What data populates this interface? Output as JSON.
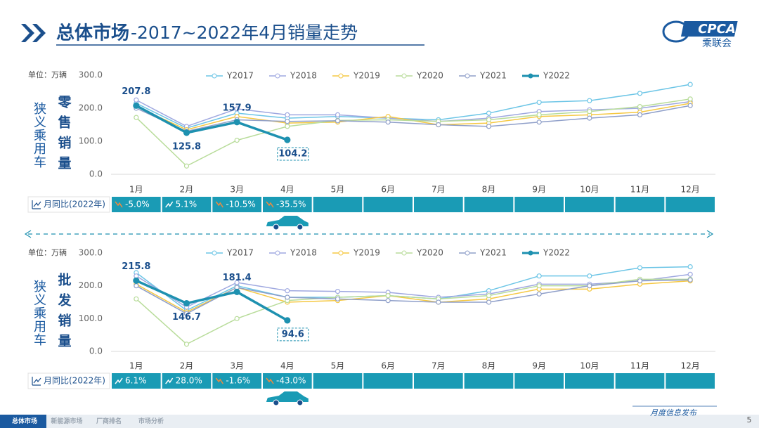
{
  "header": {
    "title_main": "总体市场",
    "title_rest": "-2017~2022年4月销量走势",
    "logo": "CPCA",
    "logo_sub": "乘联会"
  },
  "chart_data": [
    {
      "type": "line",
      "unit": "单位：万辆",
      "group_label": "狭义乘用车",
      "title": "零售销量",
      "categories": [
        "1月",
        "2月",
        "3月",
        "4月",
        "5月",
        "6月",
        "7月",
        "8月",
        "9月",
        "10月",
        "11月",
        "12月"
      ],
      "ylim": [
        0,
        300
      ],
      "yticks": [
        {
          "value": 0,
          "label": "0.0"
        },
        {
          "value": 100,
          "label": "100.0"
        },
        {
          "value": 200,
          "label": "200.0"
        },
        {
          "value": 300,
          "label": "300.0"
        }
      ],
      "series": [
        {
          "name": "Y2017",
          "color": "#6cc5e6",
          "values": [
            215,
            140,
            185,
            170,
            175,
            170,
            165,
            185,
            218,
            223,
            245,
            272
          ]
        },
        {
          "name": "Y2018",
          "color": "#9fa8e0",
          "values": [
            225,
            145,
            198,
            180,
            180,
            170,
            160,
            170,
            190,
            195,
            200,
            220
          ]
        },
        {
          "name": "Y2019",
          "color": "#f5c842",
          "values": [
            205,
            135,
            175,
            155,
            158,
            175,
            150,
            155,
            175,
            180,
            188,
            215
          ]
        },
        {
          "name": "Y2020",
          "color": "#b8dc9a",
          "values": [
            172,
            25,
            103,
            145,
            163,
            165,
            160,
            165,
            180,
            190,
            205,
            228
          ]
        },
        {
          "name": "Y2021",
          "color": "#8f9fc9",
          "values": [
            200,
            130,
            165,
            160,
            162,
            158,
            150,
            145,
            158,
            170,
            180,
            208
          ]
        },
        {
          "name": "Y2022",
          "color": "#1e91b0",
          "values": [
            207.8,
            125.8,
            157.9,
            104.2,
            null,
            null,
            null,
            null,
            null,
            null,
            null,
            null
          ]
        }
      ],
      "yoy": {
        "label": "月同比(2022年)",
        "values": [
          -5.0,
          5.1,
          -10.5,
          -35.5
        ],
        "value_labels": [
          "-5.0%",
          "5.1%",
          "-10.5%",
          "-35.5%"
        ]
      }
    },
    {
      "type": "line",
      "unit": "单位：万辆",
      "group_label": "狭义乘用车",
      "title": "批发销量",
      "categories": [
        "1月",
        "2月",
        "3月",
        "4月",
        "5月",
        "6月",
        "7月",
        "8月",
        "9月",
        "10月",
        "11月",
        "12月"
      ],
      "ylim": [
        0,
        300
      ],
      "yticks": [
        {
          "value": 0,
          "label": "0.0"
        },
        {
          "value": 100,
          "label": "100.0"
        },
        {
          "value": 200,
          "label": "200.0"
        },
        {
          "value": 300,
          "label": "300.0"
        }
      ],
      "series": [
        {
          "name": "Y2017",
          "color": "#6cc5e6",
          "values": [
            240,
            125,
            200,
            165,
            165,
            170,
            160,
            185,
            230,
            230,
            255,
            258
          ]
        },
        {
          "name": "Y2018",
          "color": "#9fa8e0",
          "values": [
            230,
            135,
            210,
            185,
            183,
            180,
            165,
            175,
            205,
            205,
            215,
            235
          ]
        },
        {
          "name": "Y2019",
          "color": "#f5c842",
          "values": [
            205,
            120,
            195,
            150,
            155,
            170,
            150,
            160,
            190,
            190,
            205,
            215
          ]
        },
        {
          "name": "Y2020",
          "color": "#b8dc9a",
          "values": [
            160,
            22,
            100,
            155,
            165,
            170,
            160,
            170,
            200,
            200,
            220,
            220
          ]
        },
        {
          "name": "Y2021",
          "color": "#8f9fc9",
          "values": [
            200,
            115,
            195,
            165,
            160,
            155,
            150,
            150,
            175,
            200,
            215,
            218
          ]
        },
        {
          "name": "Y2022",
          "color": "#1e91b0",
          "values": [
            215.8,
            146.7,
            181.4,
            94.6,
            null,
            null,
            null,
            null,
            null,
            null,
            null,
            null
          ]
        }
      ],
      "yoy": {
        "label": "月同比(2022年)",
        "values": [
          6.1,
          28.0,
          -1.6,
          -43.0
        ],
        "value_labels": [
          "6.1%",
          "28.0%",
          "-1.6%",
          "-43.0%"
        ]
      }
    }
  ],
  "footer": {
    "tabs": [
      "总体市场",
      "新能源市场",
      "厂商排名",
      "市场分析"
    ],
    "publish": "月度信息发布",
    "page": "5"
  }
}
